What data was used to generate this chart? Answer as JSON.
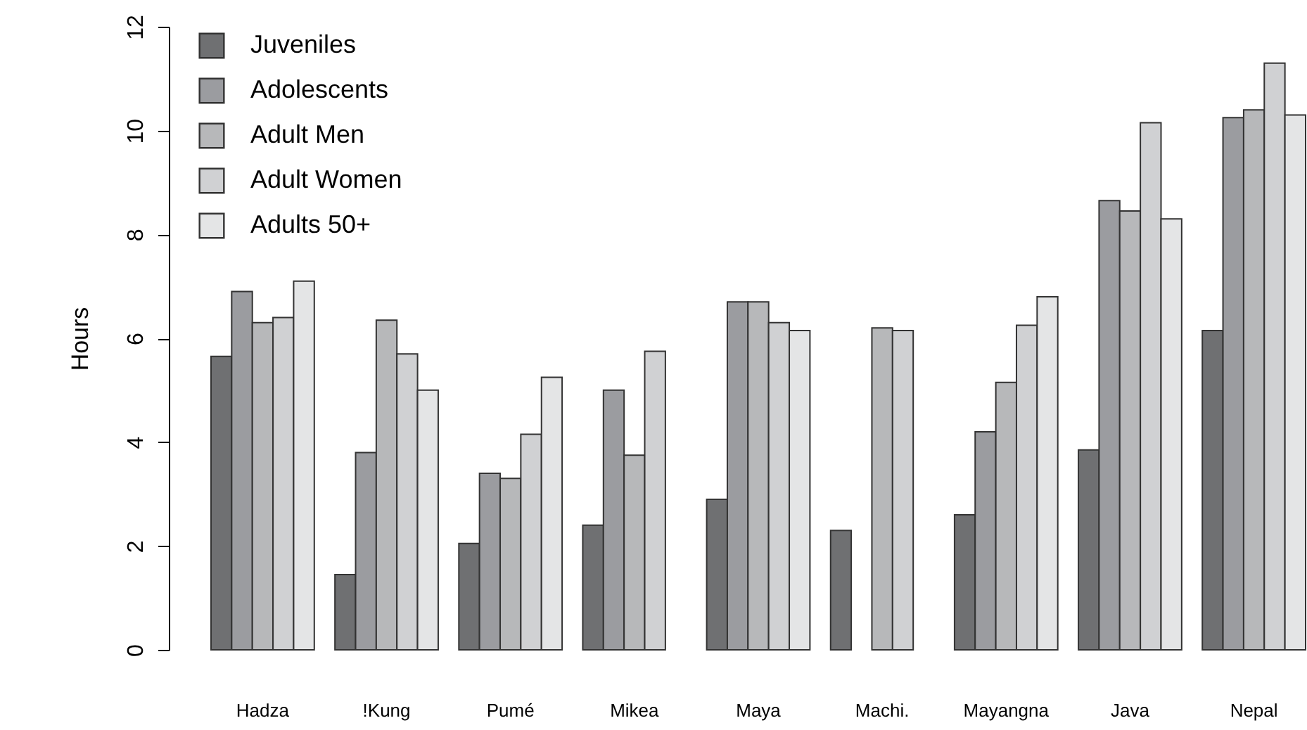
{
  "chart_data": {
    "type": "bar",
    "ylabel": "Hours",
    "categories": [
      "Hadza",
      "!Kung",
      "Pumé",
      "Mikea",
      "Maya",
      "Machi.",
      "Mayangna",
      "Java",
      "Nepal"
    ],
    "series": [
      {
        "name": "Juveniles",
        "color": "#6f7072",
        "values": [
          5.65,
          1.45,
          2.05,
          2.4,
          2.9,
          2.3,
          2.6,
          3.85,
          6.15
        ]
      },
      {
        "name": "Adolescents",
        "color": "#9b9ca0",
        "values": [
          6.9,
          3.8,
          3.4,
          5.0,
          6.7,
          null,
          4.2,
          8.65,
          10.25
        ]
      },
      {
        "name": "Adult Men",
        "color": "#b7b8ba",
        "values": [
          6.3,
          6.35,
          3.3,
          3.75,
          6.7,
          6.2,
          5.15,
          8.45,
          10.4
        ]
      },
      {
        "name": "Adult Women",
        "color": "#d0d1d3",
        "values": [
          6.4,
          5.7,
          4.15,
          5.75,
          6.3,
          6.15,
          6.25,
          10.15,
          11.3
        ]
      },
      {
        "name": "Adults 50+",
        "color": "#e4e5e6",
        "values": [
          7.1,
          5.0,
          5.25,
          null,
          6.15,
          null,
          6.8,
          8.3,
          10.3
        ]
      }
    ],
    "ylim": [
      0,
      12
    ],
    "yticks": [
      0,
      2,
      4,
      6,
      8,
      10,
      12
    ],
    "grid": false,
    "legend": "top left"
  }
}
